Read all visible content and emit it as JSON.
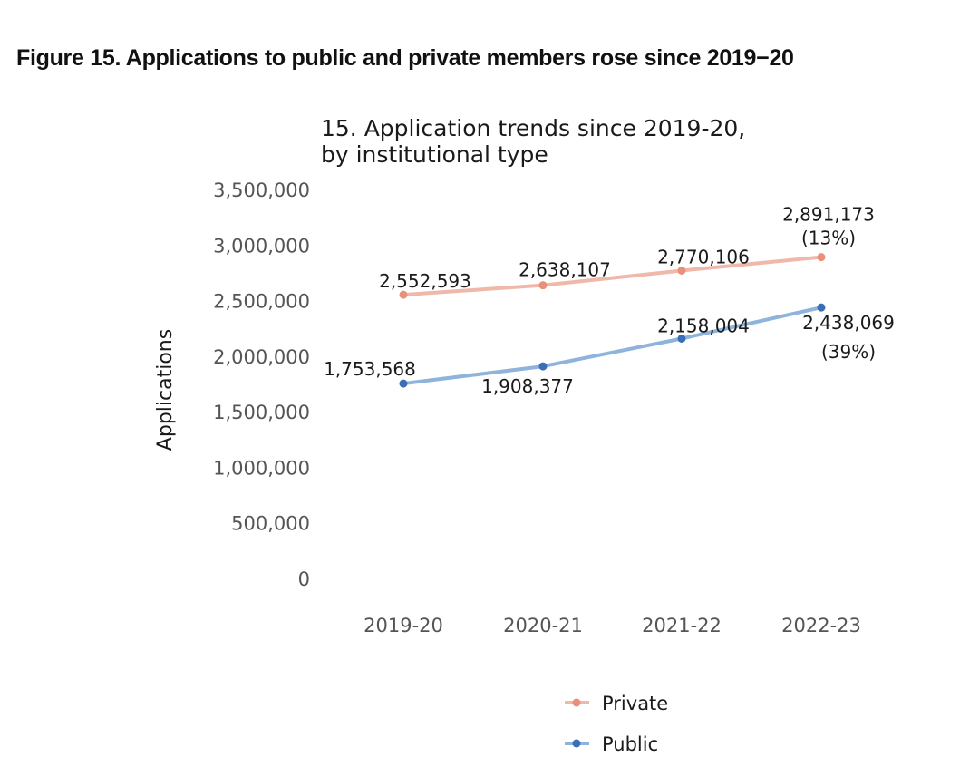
{
  "figure_title": "Figure 15. Applications to public and private members rose since 2019−20",
  "chart_data": {
    "type": "line",
    "title_lines": [
      "15. Application trends since 2019-20,",
      "by institutional type"
    ],
    "xlabel": "",
    "ylabel": "Applications",
    "categories": [
      "2019-20",
      "2020-21",
      "2021-22",
      "2022-23"
    ],
    "ylim": [
      0,
      3500000
    ],
    "yticks": [
      0,
      500000,
      1000000,
      1500000,
      2000000,
      2500000,
      3000000,
      3500000
    ],
    "ytick_labels": [
      "0",
      "500,000",
      "1,000,000",
      "1,500,000",
      "2,000,000",
      "2,500,000",
      "3,000,000",
      "3,500,000"
    ],
    "grid": false,
    "legend_position": "bottom",
    "series": [
      {
        "name": "Private",
        "color": "#f0b8a8",
        "marker_color": "#e8907a",
        "values": [
          2552593,
          2638107,
          2770106,
          2891173
        ],
        "labels": [
          "2,552,593",
          "2,638,107",
          "2,770,106",
          "2,891,173"
        ],
        "final_change_label": "(13%)"
      },
      {
        "name": "Public",
        "color": "#8fb4dc",
        "marker_color": "#3a6fb5",
        "values": [
          1753568,
          1908377,
          2158004,
          2438069
        ],
        "labels": [
          "1,753,568",
          "1,908,377",
          "2,158,004",
          "2,438,069"
        ],
        "final_change_label": "(39%)"
      }
    ]
  }
}
